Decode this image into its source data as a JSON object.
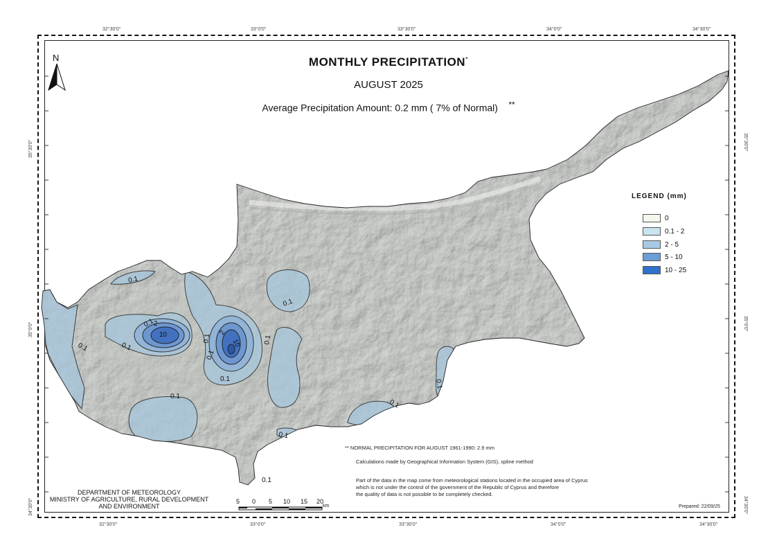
{
  "title": {
    "main": "MONTHLY  PRECIPITATION",
    "main_marker": "*",
    "month": "AUGUST 2025",
    "average": "Average Precipitation Amount: 0.2 mm ( 7% of Normal)",
    "average_marker": "**"
  },
  "north_arrow": {
    "label": "N",
    "icon": "north-arrow-icon"
  },
  "coordinates": {
    "longitudes": [
      "32°30'0\"",
      "33°0'0\"",
      "33°30'0\"",
      "34°0'0\"",
      "34°30'0\""
    ],
    "latitudes": [
      "35°30'0\"",
      "35°0'0\"",
      "34°30'0\""
    ]
  },
  "legend": {
    "title": "LEGEND (mm)",
    "items": [
      {
        "label": "0",
        "color": "#f2f9ec"
      },
      {
        "label": "0.1 - 2",
        "color": "#c8e6ee"
      },
      {
        "label": "2 - 5",
        "color": "#a7c9e6"
      },
      {
        "label": "5 - 10",
        "color": "#6a9fd8"
      },
      {
        "label": "10 - 25",
        "color": "#2e72cc"
      }
    ]
  },
  "contour_labels": [
    "0.1",
    "0.1",
    "0.1",
    "0.1",
    "0.1",
    "0.1",
    "0.1",
    "0.1",
    "0.1",
    "0.1",
    "0.1",
    "0.1",
    "0.1",
    "0.1",
    "2",
    "10",
    "2",
    "10"
  ],
  "notes": {
    "normal": "**   NORMAL PRECIPITATION FOR AUGUST 1961-1990: 2.9 mm",
    "method": "Calculations made by Geographical Information System (GIS),  spline method",
    "disclaimer_1": "Part of the data in the map come from meteorological stations located in the occupied area of Cyprus",
    "disclaimer_2": "which is not under the control of the government of the Republic of Cyprus and therefore",
    "disclaimer_3": "the quality of data is not possible to be completely checked.",
    "prepared": "Prepared: 22/09/25"
  },
  "department": {
    "line1": "DEPARTMENT OF METEOROLOGY",
    "line2": "MINISTRY OF AGRICULTURE, RURAL DEVELOPMENT",
    "line3": "AND ENVIRONMENT"
  },
  "scale_bar": {
    "ticks": [
      "5",
      "0",
      "5",
      "10",
      "15",
      "20"
    ],
    "unit": "km"
  }
}
